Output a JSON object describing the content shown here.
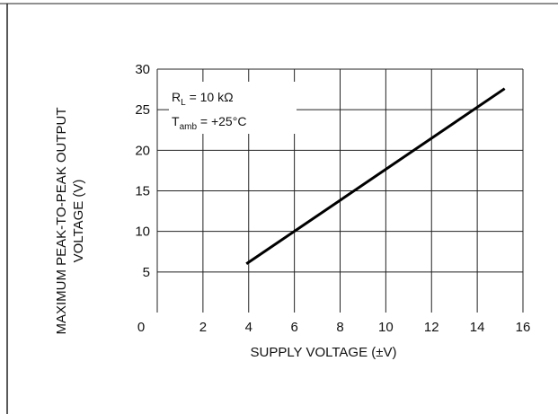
{
  "chart_data": {
    "type": "line",
    "xlabel": "SUPPLY VOLTAGE (±V)",
    "ylabel_lines": [
      "MAXIMUM PEAK-TO-PEAK OUTPUT",
      "VOLTAGE (V)"
    ],
    "xlim": [
      0,
      16
    ],
    "ylim": [
      0,
      30
    ],
    "xticks": [
      0,
      2,
      4,
      6,
      8,
      10,
      12,
      14,
      16
    ],
    "yticks": [
      0,
      5,
      10,
      15,
      20,
      25,
      30
    ],
    "grid": true,
    "annotation": {
      "rl_sym": "R",
      "rl_sub": "L",
      "rl_val": " = 10 kΩ",
      "t_sym": "T",
      "t_sub": "amb",
      "t_val": " = +25°C"
    },
    "series": [
      {
        "x": [
          3.9,
          15.2
        ],
        "y": [
          6.0,
          27.6
        ]
      }
    ]
  }
}
